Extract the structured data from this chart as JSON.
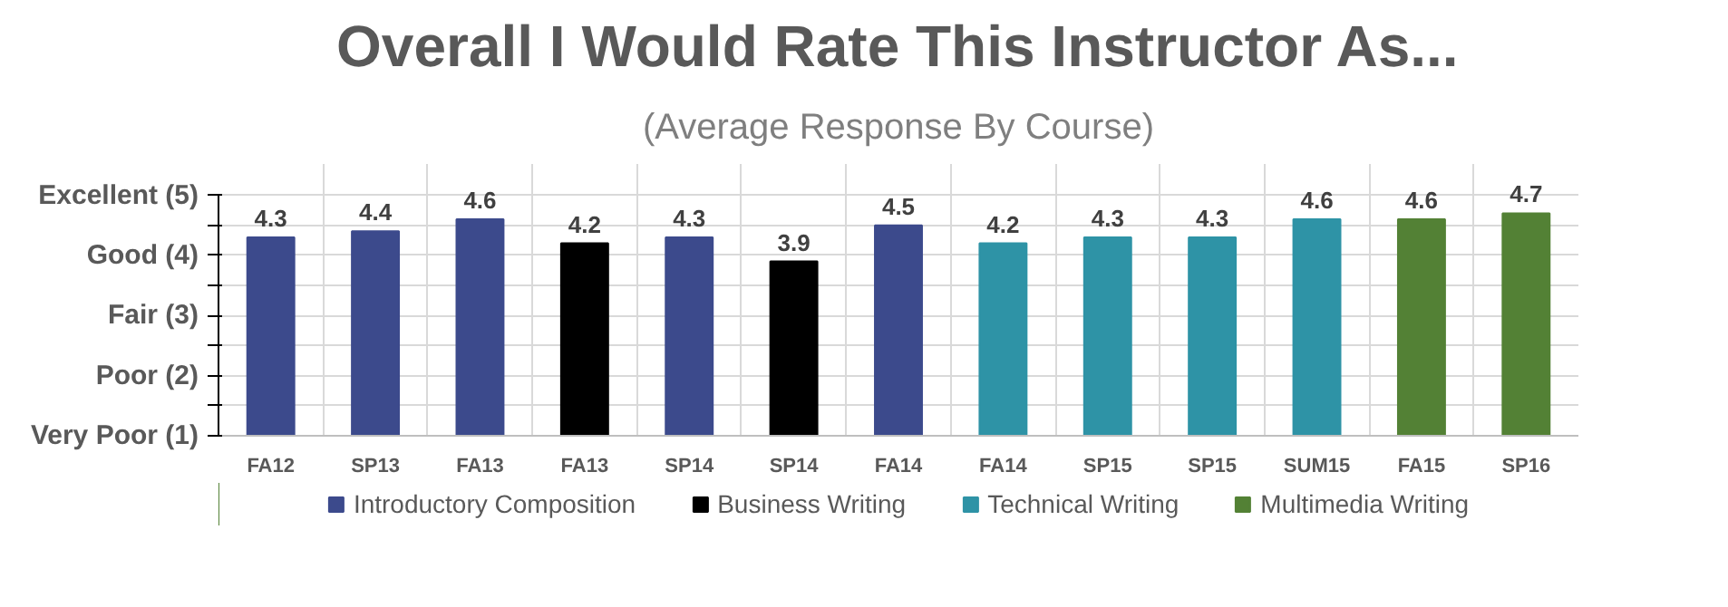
{
  "chart_data": {
    "type": "bar",
    "title": "Overall I Would Rate This Instructor As...",
    "subtitle": "(Average Response By Course)",
    "categories": [
      "FA12",
      "SP13",
      "FA13",
      "FA13",
      "SP14",
      "SP14",
      "FA14",
      "FA14",
      "SP15",
      "SP15",
      "SUM15",
      "FA15",
      "SP16"
    ],
    "series": [
      {
        "name": "Introductory Composition",
        "color": "#3c4a8c",
        "values": [
          4.3,
          4.4,
          4.6,
          null,
          4.3,
          null,
          4.5,
          null,
          null,
          null,
          null,
          null,
          null
        ]
      },
      {
        "name": "Business Writing",
        "color": "#000000",
        "values": [
          null,
          null,
          null,
          4.2,
          null,
          3.9,
          null,
          null,
          null,
          null,
          null,
          null,
          null
        ]
      },
      {
        "name": "Technical Writing",
        "color": "#2e93a6",
        "values": [
          null,
          null,
          null,
          null,
          null,
          null,
          null,
          4.2,
          4.3,
          4.3,
          4.6,
          null,
          null
        ]
      },
      {
        "name": "Multimedia Writing",
        "color": "#538135",
        "values": [
          null,
          null,
          null,
          null,
          null,
          null,
          null,
          null,
          null,
          null,
          null,
          4.6,
          4.7
        ]
      }
    ],
    "ylim": [
      1,
      5
    ],
    "yticks": [
      {
        "value": 1,
        "label": "Very Poor (1)"
      },
      {
        "value": 1.5,
        "label": null
      },
      {
        "value": 2,
        "label": "Poor (2)"
      },
      {
        "value": 2.5,
        "label": null
      },
      {
        "value": 3,
        "label": "Fair (3)"
      },
      {
        "value": 3.5,
        "label": null
      },
      {
        "value": 4,
        "label": "Good (4)"
      },
      {
        "value": 4.5,
        "label": null
      },
      {
        "value": 5,
        "label": "Excellent (5)"
      }
    ],
    "data_labels": true,
    "grid": true,
    "legend": "bottom"
  }
}
